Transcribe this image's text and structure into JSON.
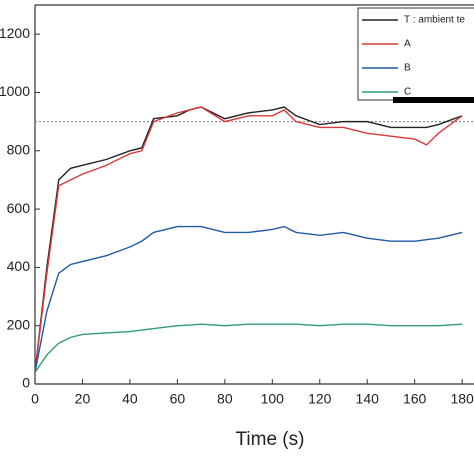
{
  "chart_data": {
    "type": "line",
    "x_label": "Time (s)",
    "x": [
      0,
      5,
      10,
      15,
      20,
      30,
      40,
      45,
      50,
      60,
      65,
      70,
      80,
      90,
      100,
      105,
      110,
      120,
      130,
      140,
      150,
      160,
      165,
      170,
      180
    ],
    "series": [
      {
        "name": "T : ambient te",
        "color": "#222222",
        "values": [
          40,
          400,
          700,
          740,
          750,
          770,
          800,
          810,
          910,
          920,
          940,
          950,
          910,
          930,
          940,
          950,
          920,
          890,
          900,
          900,
          880,
          880,
          880,
          890,
          920
        ]
      },
      {
        "name": "A",
        "color": "#d9383a",
        "values": [
          40,
          380,
          680,
          700,
          720,
          750,
          790,
          800,
          900,
          930,
          940,
          950,
          900,
          920,
          920,
          940,
          900,
          880,
          880,
          860,
          850,
          840,
          820,
          860,
          920
        ]
      },
      {
        "name": "B",
        "color": "#1f5aa6",
        "values": [
          40,
          250,
          380,
          410,
          420,
          440,
          470,
          490,
          520,
          540,
          540,
          540,
          520,
          520,
          530,
          540,
          520,
          510,
          520,
          500,
          490,
          490,
          495,
          500,
          520
        ]
      },
      {
        "name": "C",
        "color": "#2e9b7a",
        "values": [
          40,
          100,
          140,
          160,
          170,
          175,
          180,
          185,
          190,
          200,
          202,
          205,
          200,
          205,
          205,
          205,
          205,
          200,
          205,
          205,
          200,
          200,
          200,
          200,
          205
        ]
      }
    ],
    "reference_line": 900,
    "xlim": [
      0,
      185
    ],
    "xticks": [
      0,
      20,
      40,
      60,
      80,
      100,
      120,
      140,
      160,
      180
    ],
    "ylim": [
      0,
      1300
    ],
    "yticks": [
      0,
      200,
      400,
      600,
      800,
      1000,
      1200
    ]
  }
}
